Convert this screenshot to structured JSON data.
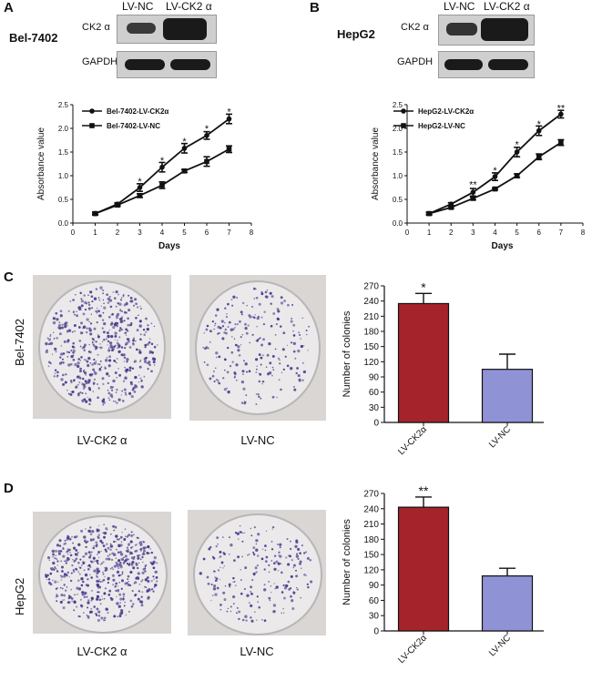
{
  "panels": {
    "A": {
      "letter": "A",
      "cell_line": "Bel-7402",
      "lanes": [
        "LV-NC",
        "LV-CK2 α"
      ],
      "blot_rows": [
        "CK2 α",
        "GAPDH"
      ]
    },
    "B": {
      "letter": "B",
      "cell_line": "HepG2",
      "lanes": [
        "LV-NC",
        "LV-CK2 α"
      ],
      "blot_rows": [
        "CK2 α",
        "GAPDH"
      ]
    },
    "C": {
      "letter": "C",
      "cell_line": "Bel-7402",
      "dish_labels": [
        "LV-CK2 α",
        "LV-NC"
      ]
    },
    "D": {
      "letter": "D",
      "cell_line": "HepG2",
      "dish_labels": [
        "LV-CK2 α",
        "LV-NC"
      ]
    }
  },
  "colors": {
    "bar_ck2": "#a5232a",
    "bar_nc": "#8f93d6",
    "ink": "#111111",
    "colony": "#4a3a8c"
  },
  "chart_data": [
    {
      "id": "growthA",
      "type": "line",
      "xlabel": "Days",
      "ylabel": "Absorbance value",
      "xlim": [
        0,
        8
      ],
      "ylim": [
        0,
        2.5
      ],
      "xticks": [
        "0",
        "1",
        "2",
        "3",
        "4",
        "5",
        "6",
        "7",
        "8"
      ],
      "yticks": [
        "0.0",
        "0.5",
        "1.0",
        "1.5",
        "2.0",
        "2.5"
      ],
      "legend_position": "top-left",
      "series": [
        {
          "name": "Bel-7402-LV-CK2α",
          "marker": "circle",
          "x": [
            1,
            2,
            3,
            4,
            5,
            6,
            7
          ],
          "values": [
            0.2,
            0.4,
            0.75,
            1.18,
            1.58,
            1.85,
            2.2
          ],
          "errors": [
            0.03,
            0.03,
            0.08,
            0.1,
            0.1,
            0.08,
            0.1
          ]
        },
        {
          "name": "Bel-7402-LV-NC",
          "marker": "square",
          "x": [
            1,
            2,
            3,
            4,
            5,
            6,
            7
          ],
          "values": [
            0.2,
            0.38,
            0.58,
            0.8,
            1.1,
            1.3,
            1.56
          ],
          "errors": [
            0.02,
            0.03,
            0.04,
            0.07,
            0.03,
            0.1,
            0.07
          ]
        }
      ],
      "annotations": [
        {
          "x": 3,
          "y": 0.88,
          "text": "*"
        },
        {
          "x": 4,
          "y": 1.33,
          "text": "*"
        },
        {
          "x": 5,
          "y": 1.73,
          "text": "*"
        },
        {
          "x": 6,
          "y": 2.0,
          "text": "*"
        },
        {
          "x": 7,
          "y": 2.36,
          "text": "*"
        }
      ]
    },
    {
      "id": "growthB",
      "type": "line",
      "xlabel": "Days",
      "ylabel": "Absorbance value",
      "xlim": [
        0,
        8
      ],
      "ylim": [
        0,
        2.5
      ],
      "xticks": [
        "0",
        "1",
        "2",
        "3",
        "4",
        "5",
        "6",
        "7",
        "8"
      ],
      "yticks": [
        "0.0",
        "0.5",
        "1.0",
        "1.5",
        "2.0",
        "2.5"
      ],
      "legend_position": "top-left",
      "series": [
        {
          "name": "HepG2-LV-CK2α",
          "marker": "circle",
          "x": [
            1,
            2,
            3,
            4,
            5,
            6,
            7
          ],
          "values": [
            0.2,
            0.4,
            0.65,
            0.98,
            1.5,
            1.95,
            2.3
          ],
          "errors": [
            0.03,
            0.03,
            0.08,
            0.08,
            0.1,
            0.1,
            0.08
          ]
        },
        {
          "name": "HepG2-LV-NC",
          "marker": "square",
          "x": [
            1,
            2,
            3,
            4,
            5,
            6,
            7
          ],
          "values": [
            0.2,
            0.33,
            0.52,
            0.72,
            1.0,
            1.4,
            1.7
          ],
          "errors": [
            0.02,
            0.02,
            0.03,
            0.02,
            0.04,
            0.06,
            0.06
          ]
        }
      ],
      "annotations": [
        {
          "x": 3,
          "y": 0.82,
          "text": "**"
        },
        {
          "x": 4,
          "y": 1.12,
          "text": "*"
        },
        {
          "x": 5,
          "y": 1.66,
          "text": "*"
        },
        {
          "x": 6,
          "y": 2.1,
          "text": "*"
        },
        {
          "x": 7,
          "y": 2.43,
          "text": "**"
        }
      ]
    },
    {
      "id": "colonyC",
      "type": "bar",
      "ylabel": "Number of colonies",
      "ylim": [
        0,
        270
      ],
      "yticks": [
        "0",
        "30",
        "60",
        "90",
        "120",
        "150",
        "180",
        "210",
        "240",
        "270"
      ],
      "categories": [
        "LV-CK2α",
        "LV-NC"
      ],
      "values": [
        235,
        105
      ],
      "errors": [
        20,
        30
      ],
      "bar_colors": [
        "#a5232a",
        "#8f93d6"
      ],
      "annotations": [
        {
          "category": 0,
          "text": "*"
        }
      ]
    },
    {
      "id": "colonyD",
      "type": "bar",
      "ylabel": "Number of colonies",
      "ylim": [
        0,
        270
      ],
      "yticks": [
        "0",
        "30",
        "60",
        "90",
        "120",
        "150",
        "180",
        "210",
        "240",
        "270"
      ],
      "categories": [
        "LV-CK2α",
        "LV-NC"
      ],
      "values": [
        243,
        108
      ],
      "errors": [
        20,
        15
      ],
      "bar_colors": [
        "#a5232a",
        "#8f93d6"
      ],
      "annotations": [
        {
          "category": 0,
          "text": "**"
        }
      ]
    }
  ]
}
